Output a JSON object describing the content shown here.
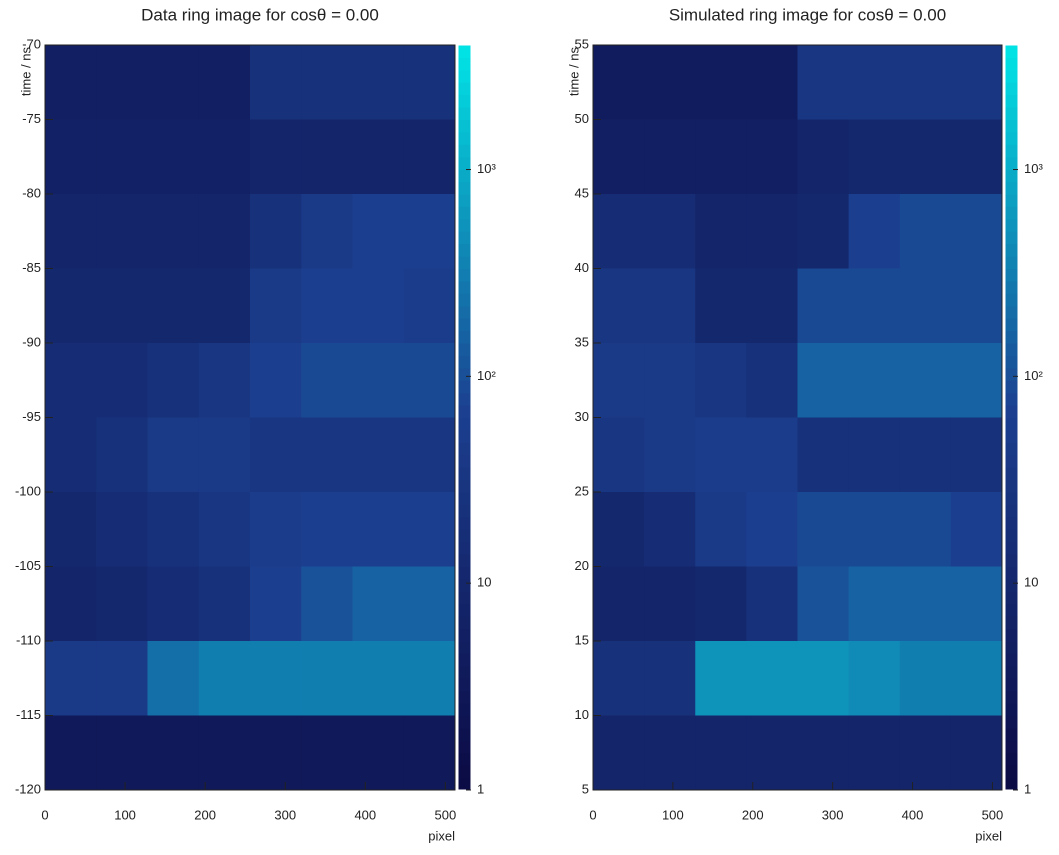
{
  "chart_data": [
    {
      "type": "heatmap",
      "title": "Data ring image for cosθ = 0.00",
      "x_label": "pixel",
      "y_label": "time / ns",
      "xlim": [
        0,
        512
      ],
      "xticks": [
        0,
        100,
        200,
        300,
        400,
        500
      ],
      "ylim": [
        -70,
        -120
      ],
      "yticks": [
        -70,
        -75,
        -80,
        -85,
        -90,
        -95,
        -100,
        -105,
        -110,
        -115,
        -120
      ],
      "x_bins": [
        0,
        64,
        128,
        192,
        256,
        320,
        384,
        448,
        512
      ],
      "y_bins": [
        -70,
        -75,
        -80,
        -85,
        -90,
        -95,
        -100,
        -105,
        -110,
        -115,
        -120
      ],
      "values": [
        [
          5,
          5,
          5,
          5,
          20,
          20,
          20,
          20
        ],
        [
          6,
          6,
          6,
          6,
          8,
          8,
          8,
          8
        ],
        [
          8,
          8,
          8,
          8,
          20,
          40,
          60,
          60
        ],
        [
          10,
          10,
          10,
          10,
          40,
          60,
          60,
          50
        ],
        [
          15,
          15,
          20,
          30,
          60,
          80,
          80,
          80
        ],
        [
          15,
          20,
          40,
          40,
          30,
          30,
          30,
          30
        ],
        [
          10,
          15,
          20,
          30,
          50,
          60,
          60,
          60
        ],
        [
          8,
          10,
          15,
          20,
          60,
          100,
          150,
          150
        ],
        [
          40,
          40,
          200,
          300,
          300,
          300,
          300,
          300
        ],
        [
          3,
          3,
          3,
          3,
          3,
          3,
          3,
          3
        ]
      ],
      "zlim": [
        1,
        4000
      ],
      "log_z": true,
      "zticks": [
        1,
        10,
        {
          "value": 100,
          "label": "10²"
        },
        {
          "value": 1000,
          "label": "10³"
        }
      ],
      "colorscale": [
        "#0b0b45",
        "#1c3f8f",
        "#00e8e8"
      ]
    },
    {
      "type": "heatmap",
      "title": "Simulated ring image for cosθ = 0.00",
      "x_label": "pixel",
      "y_label": "time / ns",
      "xlim": [
        0,
        512
      ],
      "xticks": [
        0,
        100,
        200,
        300,
        400,
        500
      ],
      "ylim": [
        55,
        5
      ],
      "yticks": [
        55,
        50,
        45,
        40,
        35,
        30,
        25,
        20,
        15,
        10,
        5
      ],
      "x_bins": [
        0,
        64,
        128,
        192,
        256,
        320,
        384,
        448,
        512
      ],
      "y_bins": [
        55,
        50,
        45,
        40,
        35,
        30,
        25,
        20,
        15,
        10,
        5
      ],
      "values": [
        [
          4,
          4,
          4,
          4,
          30,
          30,
          30,
          30
        ],
        [
          5,
          5,
          5,
          5,
          8,
          10,
          10,
          10
        ],
        [
          15,
          15,
          8,
          8,
          10,
          60,
          80,
          80
        ],
        [
          30,
          30,
          10,
          10,
          80,
          80,
          80,
          80
        ],
        [
          40,
          40,
          30,
          20,
          150,
          150,
          150,
          150
        ],
        [
          30,
          40,
          50,
          50,
          20,
          20,
          20,
          20
        ],
        [
          10,
          15,
          40,
          60,
          80,
          80,
          80,
          60
        ],
        [
          8,
          8,
          10,
          20,
          100,
          150,
          150,
          150
        ],
        [
          20,
          20,
          500,
          500,
          500,
          400,
          300,
          300
        ],
        [
          8,
          8,
          8,
          8,
          8,
          8,
          8,
          8
        ]
      ],
      "zlim": [
        1,
        4000
      ],
      "log_z": true,
      "zticks": [
        1,
        10,
        {
          "value": 100,
          "label": "10²"
        },
        {
          "value": 1000,
          "label": "10³"
        }
      ],
      "colorscale": [
        "#0b0b45",
        "#1c3f8f",
        "#00e8e8"
      ]
    }
  ]
}
